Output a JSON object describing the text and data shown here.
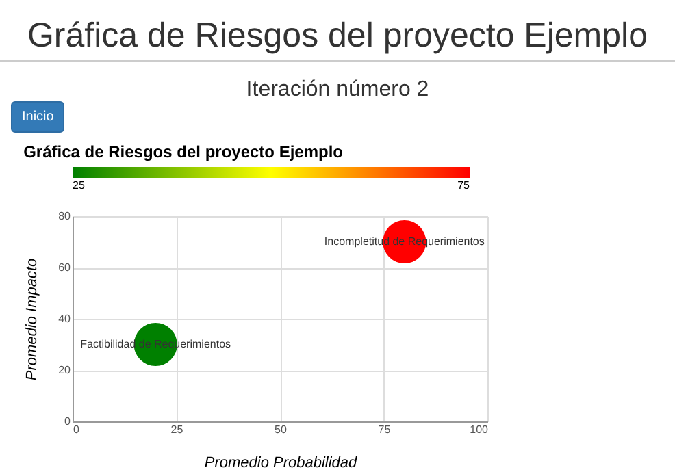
{
  "chart_data": {
    "type": "bubble",
    "title": "Gráfica de Riesgos del proyecto Ejemplo",
    "subtitle": "Iteración número 2",
    "xlabel": "Promedio Probabilidad",
    "ylabel": "Promedio Impacto",
    "annotations": [
      "Gráfica de Riesgos del proyecto Ejemplo",
      "Inicio",
      {
        "text": "Factibilidad de Requerimientos",
        "x": 20,
        "y": 30
      },
      {
        "text": "Incompletitud de Requerimientos",
        "x": 80,
        "y": 70
      }
    ],
    "x": [
      20,
      80
    ],
    "values": [
      30,
      70
    ],
    "sizes": [
      1,
      1
    ],
    "cvalues": [
      25,
      75
    ],
    "clim": [
      25,
      75
    ],
    "cticks": [
      25,
      75
    ],
    "xlim": [
      0,
      100
    ],
    "xticks": [
      0,
      25,
      50,
      75,
      100
    ],
    "ylim": [
      0,
      80
    ],
    "yticks": [
      0,
      20,
      40,
      60,
      80
    ],
    "grid": true,
    "marker": "circle"
  }
}
